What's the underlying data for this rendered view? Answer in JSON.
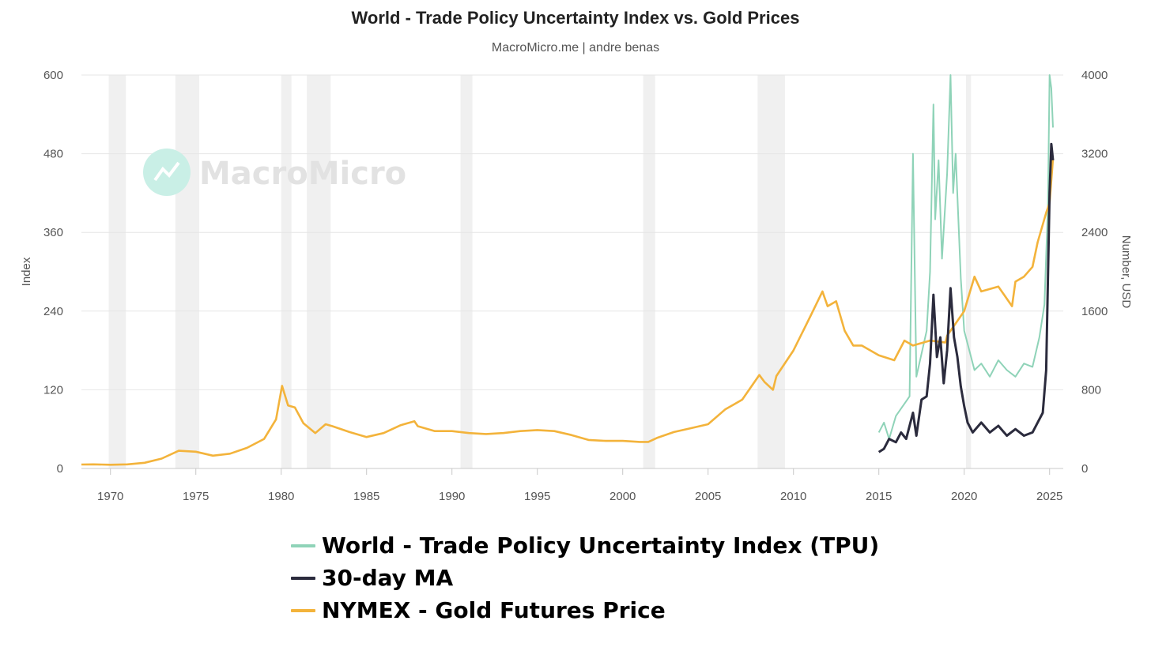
{
  "chart_data": {
    "type": "line",
    "title": "World - Trade Policy Uncertainty Index vs. Gold Prices",
    "subtitle": "MacroMicro.me | andre benas",
    "watermark": "MacroMicro",
    "x_ticks": [
      1970,
      1975,
      1980,
      1985,
      1990,
      1995,
      2000,
      2005,
      2010,
      2015,
      2020,
      2025
    ],
    "xlim": [
      1968.3,
      2025.8
    ],
    "y_left": {
      "label": "Index",
      "ticks": [
        0,
        120,
        240,
        360,
        480,
        600
      ],
      "ylim": [
        0,
        600
      ]
    },
    "y_right": {
      "label": "Number, USD",
      "ticks": [
        0,
        800,
        1600,
        2400,
        3200,
        4000
      ],
      "ylim": [
        0,
        4000
      ]
    },
    "grid": true,
    "legend_position": "bottom",
    "recession_bands": [
      [
        1969.9,
        1970.9
      ],
      [
        1973.8,
        1975.2
      ],
      [
        1980.0,
        1980.6
      ],
      [
        1981.5,
        1982.9
      ],
      [
        1990.5,
        1991.2
      ],
      [
        2001.2,
        2001.9
      ],
      [
        2007.9,
        2009.5
      ],
      [
        2020.1,
        2020.4
      ]
    ],
    "series": [
      {
        "name": "World - Trade Policy Uncertainty Index (TPU)",
        "axis": "left",
        "color": "#8fd3b8",
        "x": [
          2015.0,
          2015.3,
          2015.6,
          2016.0,
          2016.4,
          2016.8,
          2017.0,
          2017.2,
          2017.5,
          2017.8,
          2018.0,
          2018.2,
          2018.3,
          2018.5,
          2018.7,
          2019.0,
          2019.2,
          2019.35,
          2019.5,
          2019.8,
          2020.0,
          2020.3,
          2020.6,
          2021.0,
          2021.5,
          2022.0,
          2022.5,
          2023.0,
          2023.5,
          2024.0,
          2024.4,
          2024.7,
          2024.9,
          2025.0,
          2025.1,
          2025.2
        ],
        "values": [
          55,
          70,
          45,
          80,
          95,
          110,
          480,
          140,
          175,
          210,
          300,
          555,
          380,
          470,
          320,
          450,
          600,
          420,
          480,
          290,
          210,
          180,
          150,
          160,
          140,
          165,
          150,
          140,
          160,
          155,
          200,
          250,
          400,
          600,
          580,
          520
        ]
      },
      {
        "name": "30-day MA",
        "axis": "left",
        "color": "#2b2b3d",
        "x": [
          2015.0,
          2015.3,
          2015.6,
          2016.0,
          2016.3,
          2016.6,
          2017.0,
          2017.2,
          2017.5,
          2017.8,
          2018.0,
          2018.2,
          2018.4,
          2018.6,
          2018.8,
          2019.0,
          2019.2,
          2019.4,
          2019.6,
          2019.8,
          2020.0,
          2020.2,
          2020.5,
          2021.0,
          2021.5,
          2022.0,
          2022.5,
          2023.0,
          2023.5,
          2024.0,
          2024.3,
          2024.6,
          2024.8,
          2025.0,
          2025.1,
          2025.2
        ],
        "values": [
          25,
          30,
          45,
          40,
          55,
          45,
          85,
          50,
          105,
          110,
          160,
          265,
          170,
          200,
          130,
          180,
          275,
          200,
          170,
          125,
          95,
          70,
          55,
          70,
          55,
          65,
          50,
          60,
          50,
          55,
          70,
          85,
          150,
          420,
          495,
          470
        ]
      },
      {
        "name": "NYMEX - Gold Futures Price",
        "axis": "right",
        "color": "#f3b33b",
        "x": [
          1968.3,
          1969,
          1970,
          1971,
          1972,
          1973,
          1974,
          1975,
          1976,
          1977,
          1978,
          1979,
          1979.7,
          1980.05,
          1980.4,
          1980.8,
          1981.3,
          1982.0,
          1982.6,
          1983.0,
          1984,
          1985,
          1986,
          1987,
          1987.8,
          1988,
          1989,
          1990,
          1991,
          1992,
          1993,
          1994,
          1995,
          1996,
          1997,
          1998,
          1999,
          2000,
          2001,
          2001.5,
          2002,
          2003,
          2004,
          2005,
          2006,
          2006.5,
          2007,
          2008.0,
          2008.3,
          2008.8,
          2009,
          2010,
          2011,
          2011.7,
          2012,
          2012.5,
          2013,
          2013.5,
          2014,
          2015,
          2015.9,
          2016.5,
          2017,
          2018,
          2018.9,
          2019,
          2019.6,
          2020,
          2020.6,
          2021,
          2022,
          2022.8,
          2023,
          2023.5,
          2024,
          2024.3,
          2024.8,
          2025.0,
          2025.2
        ],
        "values": [
          40,
          42,
          38,
          42,
          58,
          100,
          180,
          170,
          130,
          150,
          210,
          300,
          500,
          840,
          640,
          620,
          460,
          360,
          450,
          430,
          370,
          320,
          360,
          440,
          480,
          430,
          380,
          380,
          360,
          350,
          360,
          380,
          390,
          380,
          340,
          290,
          280,
          280,
          270,
          270,
          310,
          370,
          410,
          450,
          600,
          650,
          700,
          950,
          880,
          800,
          940,
          1200,
          1550,
          1800,
          1650,
          1700,
          1400,
          1250,
          1250,
          1150,
          1100,
          1300,
          1250,
          1300,
          1280,
          1350,
          1500,
          1600,
          1950,
          1800,
          1850,
          1650,
          1900,
          1950,
          2050,
          2300,
          2600,
          2700,
          3150
        ]
      }
    ],
    "legend": [
      {
        "label": "World - Trade Policy Uncertainty Index (TPU)",
        "color": "#8fd3b8"
      },
      {
        "label": "30-day MA",
        "color": "#2b2b3d"
      },
      {
        "label": "NYMEX - Gold Futures Price",
        "color": "#f3b33b"
      }
    ]
  }
}
